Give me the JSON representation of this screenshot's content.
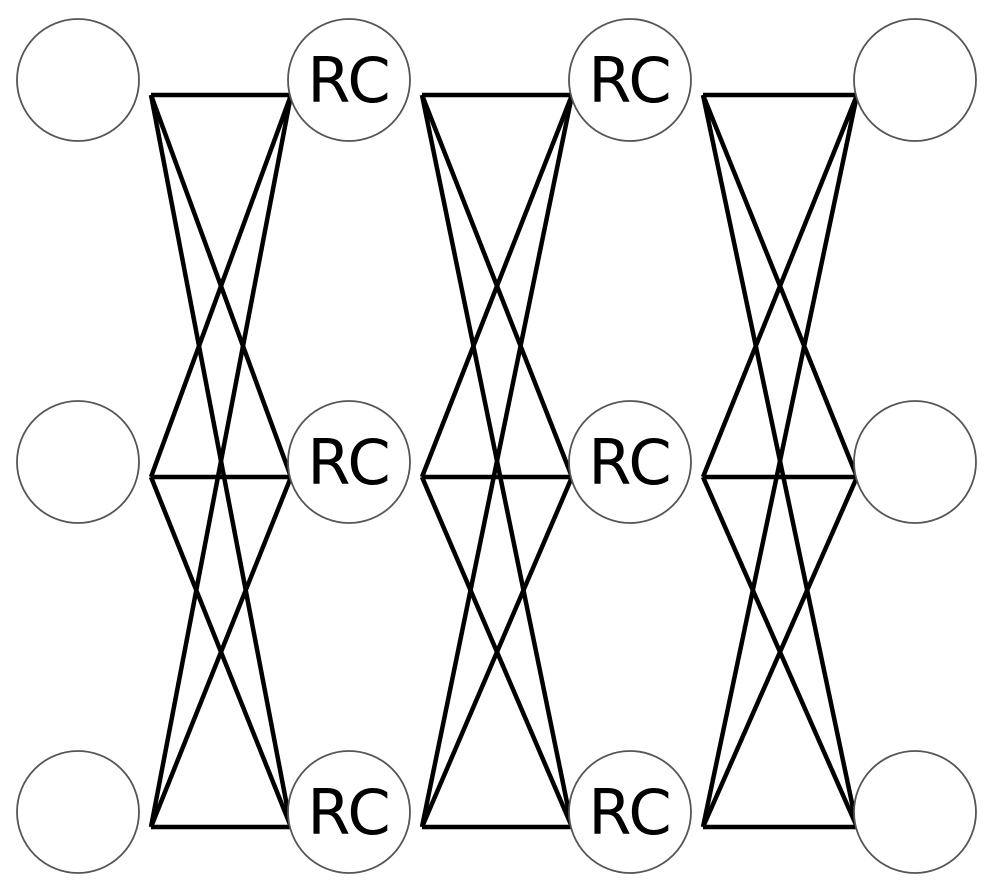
{
  "diagram": {
    "layers": [
      {
        "nodes": [
          "",
          "",
          ""
        ]
      },
      {
        "nodes": [
          "RC",
          "RC",
          "RC"
        ]
      },
      {
        "nodes": [
          "RC",
          "RC",
          "RC"
        ]
      },
      {
        "nodes": [
          "",
          "",
          ""
        ]
      }
    ],
    "connectivity": "fully-connected between adjacent layers",
    "colors": {
      "edge": "#000000",
      "node_stroke": "#555555",
      "node_fill": "#ffffff",
      "label": "#000000"
    }
  }
}
